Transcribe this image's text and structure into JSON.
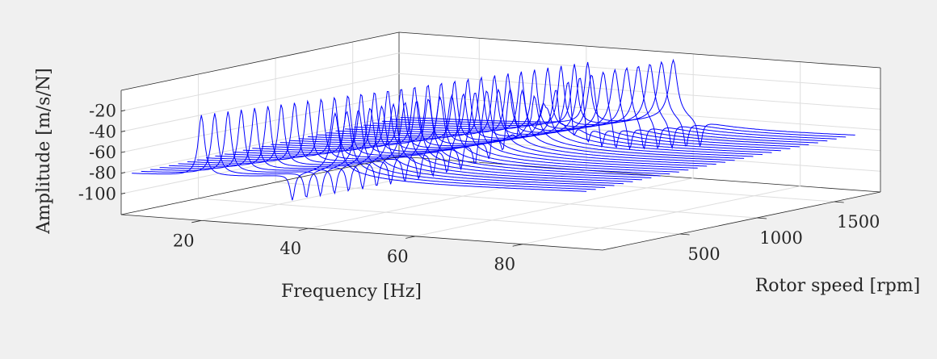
{
  "chart_data": {
    "type": "line",
    "title": "",
    "xlabel": "Frequency [Hz]",
    "ylabel": "Rotor speed [rpm]",
    "zlabel": "Amplitude [m/s/N]",
    "xlim": [
      5,
      95
    ],
    "ylim": [
      0,
      1800
    ],
    "zlim": [
      -120,
      0
    ],
    "xticks": [
      "20",
      "40",
      "60",
      "80"
    ],
    "yticks": [
      "500",
      "1000",
      "1500"
    ],
    "zticks": [
      "-20",
      "-40",
      "-60",
      "-80",
      "-100"
    ],
    "xtick_values": [
      20,
      40,
      60,
      80
    ],
    "ytick_values": [
      500,
      1000,
      1500
    ],
    "ztick_values": [
      -20,
      -40,
      -60,
      -80,
      -100
    ],
    "grid": true,
    "line_color": "#0000ff",
    "series_rpm": [
      0,
      60,
      120,
      180,
      240,
      300,
      360,
      420,
      480,
      540,
      600,
      660,
      720,
      780,
      840,
      900,
      960,
      1020,
      1080,
      1140,
      1200,
      1260,
      1320,
      1380,
      1440,
      1500,
      1560,
      1620,
      1680,
      1740
    ],
    "resonance_hz_at_0rpm": [
      20,
      45
    ],
    "resonance_hz_at_1740rpm": [
      42,
      58
    ],
    "antiresonance_hz_at_0rpm": 37,
    "antiresonance_hz_at_1740rpm": 63,
    "peak_amplitude": -15,
    "baseline_amplitude": -80,
    "antiresonance_amplitude": -110
  }
}
